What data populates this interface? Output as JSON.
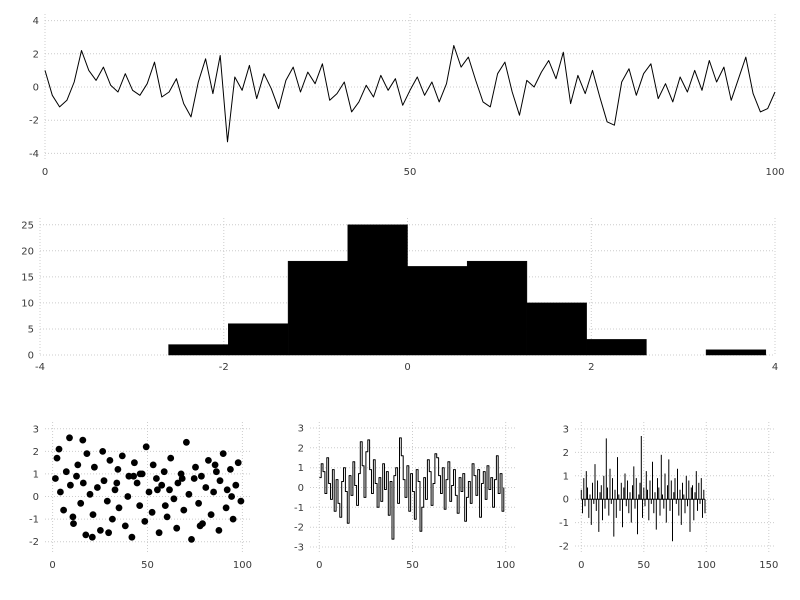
{
  "page": {
    "background": "#ffffff",
    "series_color": "#000000",
    "grid_color": "#cccccc",
    "tick_color": "#3a3a3a"
  },
  "chart_data": [
    {
      "id": "line",
      "type": "line",
      "title": "",
      "xlabel": "",
      "ylabel": "",
      "xlim": [
        0,
        100
      ],
      "ylim": [
        -4.4,
        4.4
      ],
      "xticks": [
        0,
        50,
        100
      ],
      "yticks": [
        -4,
        -2,
        0,
        2,
        4
      ],
      "grid": true,
      "color": "#000000",
      "y": [
        1.0,
        -0.5,
        -1.2,
        -0.8,
        0.3,
        2.2,
        1.0,
        0.4,
        1.2,
        0.1,
        -0.3,
        0.8,
        -0.2,
        -0.5,
        0.2,
        1.5,
        -0.6,
        -0.3,
        0.5,
        -1.0,
        -1.8,
        0.3,
        1.7,
        -0.4,
        1.9,
        -3.3,
        0.6,
        -0.2,
        1.3,
        -0.7,
        0.8,
        -0.1,
        -1.3,
        0.4,
        1.2,
        -0.3,
        0.9,
        0.2,
        1.4,
        -0.8,
        -0.4,
        0.3,
        -1.5,
        -0.9,
        0.1,
        -0.6,
        0.7,
        -0.2,
        0.5,
        -1.1,
        -0.2,
        0.6,
        -0.5,
        0.3,
        -0.9,
        0.2,
        2.5,
        1.2,
        1.8,
        0.4,
        -0.9,
        -1.2,
        0.8,
        1.5,
        -0.3,
        -1.7,
        0.4,
        0.0,
        0.9,
        1.6,
        0.5,
        2.1,
        -1.0,
        0.7,
        -0.4,
        1.0,
        -0.6,
        -2.1,
        -2.3,
        0.3,
        1.1,
        -0.5,
        0.8,
        1.4,
        -0.7,
        0.2,
        -0.9,
        0.6,
        -0.3,
        1.0,
        -0.2,
        1.6,
        0.3,
        1.2,
        -0.8,
        0.5,
        1.8,
        -0.4,
        -1.5,
        -1.3,
        -0.3
      ]
    },
    {
      "id": "hist",
      "type": "histogram",
      "title": "",
      "xlabel": "",
      "ylabel": "",
      "xlim": [
        -4,
        4
      ],
      "ylim": [
        0,
        26.3
      ],
      "xticks": [
        -4,
        -2,
        0,
        2,
        4
      ],
      "yticks": [
        0,
        5,
        10,
        15,
        20,
        25
      ],
      "grid": true,
      "color": "#000000",
      "bin_edges": [
        -2.6,
        -1.95,
        -1.3,
        -0.65,
        0.0,
        0.65,
        1.3,
        1.95,
        2.6,
        3.25,
        3.9
      ],
      "counts": [
        2,
        6,
        18,
        25,
        17,
        18,
        10,
        3,
        0,
        1
      ]
    },
    {
      "id": "scatter",
      "type": "scatter",
      "title": "",
      "xlabel": "",
      "ylabel": "",
      "xlim": [
        -4,
        104
      ],
      "ylim": [
        -2.5,
        3.3
      ],
      "xticks": [
        0,
        50,
        100
      ],
      "yticks": [
        -2,
        -1,
        0,
        1,
        2,
        3
      ],
      "grid": true,
      "color": "#000000",
      "x": [
        1.5,
        2.3,
        4.1,
        5.8,
        7.2,
        8.9,
        9.4,
        11.0,
        12.6,
        13.3,
        14.8,
        16.2,
        17.5,
        18.1,
        19.7,
        21.3,
        22.0,
        23.6,
        25.2,
        26.4,
        27.1,
        28.8,
        30.2,
        31.5,
        32.9,
        34.4,
        35.0,
        36.7,
        38.3,
        39.6,
        40.2,
        41.8,
        43.1,
        44.5,
        45.9,
        47.2,
        48.6,
        49.3,
        50.8,
        52.4,
        53.0,
        54.7,
        56.1,
        57.5,
        58.8,
        60.3,
        61.6,
        62.2,
        63.9,
        65.4,
        66.0,
        67.7,
        69.1,
        70.5,
        71.8,
        73.2,
        74.6,
        75.3,
        76.9,
        78.4,
        79.0,
        80.7,
        82.1,
        83.5,
        84.8,
        86.3,
        87.6,
        88.2,
        89.9,
        91.4,
        92.0,
        93.7,
        95.1,
        96.5,
        97.8,
        99.2,
        3.4,
        10.7,
        20.9,
        33.8,
        46.1,
        59.4,
        68.3,
        77.7,
        85.6,
        94.3,
        15.9,
        29.5,
        42.7,
        55.2
      ],
      "y": [
        0.8,
        1.7,
        0.2,
        -0.6,
        1.1,
        2.6,
        0.5,
        -1.2,
        0.9,
        1.4,
        -0.3,
        0.6,
        -1.7,
        1.9,
        0.1,
        -0.8,
        1.3,
        0.4,
        -1.5,
        2.0,
        0.7,
        -0.2,
        1.6,
        -1.0,
        0.3,
        1.2,
        -0.5,
        1.8,
        -1.3,
        0.0,
        0.9,
        -1.8,
        1.5,
        0.6,
        -0.4,
        1.0,
        -1.1,
        2.2,
        0.2,
        -0.7,
        1.4,
        0.8,
        -1.6,
        0.5,
        1.1,
        -0.9,
        0.3,
        1.7,
        -0.1,
        -1.4,
        0.6,
        1.0,
        -0.6,
        2.4,
        0.1,
        -1.9,
        0.8,
        1.3,
        -0.3,
        0.9,
        -1.2,
        0.4,
        1.6,
        -0.8,
        0.2,
        1.1,
        -1.5,
        0.7,
        1.9,
        -0.5,
        0.3,
        1.2,
        -1.0,
        0.5,
        1.5,
        -0.2,
        2.1,
        -0.9,
        -1.8,
        0.6,
        1.0,
        -0.4,
        0.8,
        -1.3,
        1.4,
        0.0,
        2.5,
        -1.6,
        0.9,
        0.3
      ]
    },
    {
      "id": "step",
      "type": "step",
      "title": "",
      "xlabel": "",
      "ylabel": "",
      "xlim": [
        -5,
        105
      ],
      "ylim": [
        -3.3,
        3.3
      ],
      "xticks": [
        0,
        50,
        100
      ],
      "yticks": [
        -3,
        -2,
        -1,
        0,
        1,
        2,
        3
      ],
      "grid": true,
      "color": "#000000",
      "y": [
        0.5,
        1.2,
        0.8,
        -0.3,
        1.5,
        0.2,
        -0.6,
        0.9,
        -1.2,
        0.4,
        -0.8,
        -1.5,
        0.3,
        1.0,
        -0.2,
        -1.8,
        0.6,
        -0.4,
        1.3,
        0.1,
        -0.9,
        0.7,
        2.3,
        1.1,
        -0.5,
        1.8,
        2.4,
        0.9,
        -0.3,
        1.4,
        0.2,
        -1.0,
        0.5,
        -0.7,
        1.2,
        -0.1,
        0.8,
        -1.4,
        0.3,
        -2.6,
        0.6,
        1.0,
        -0.8,
        2.5,
        1.6,
        0.4,
        -0.5,
        1.1,
        -1.2,
        0.7,
        -0.2,
        -1.6,
        0.9,
        0.3,
        -2.2,
        -1.0,
        0.5,
        -0.6,
        1.4,
        0.8,
        -0.9,
        0.2,
        1.7,
        1.5,
        0.6,
        -0.3,
        1.0,
        -1.1,
        0.4,
        1.3,
        -0.7,
        0.1,
        0.9,
        -0.4,
        -1.3,
        0.5,
        -0.2,
        0.7,
        -1.7,
        -0.5,
        0.3,
        -0.8,
        1.2,
        0.6,
        -0.4,
        0.9,
        -1.5,
        0.2,
        0.8,
        -0.6,
        1.1,
        -0.1,
        0.5,
        -1.0,
        0.4,
        1.6,
        -0.3,
        0.7,
        -1.2,
        0.0
      ]
    },
    {
      "id": "stem",
      "type": "stem",
      "title": "",
      "xlabel": "",
      "ylabel": "",
      "xlim": [
        -5,
        155
      ],
      "ylim": [
        -2.3,
        3.3
      ],
      "xticks": [
        0,
        50,
        100,
        150
      ],
      "yticks": [
        -2,
        -1,
        0,
        1,
        2,
        3
      ],
      "grid": true,
      "color": "#000000",
      "y": [
        0.4,
        -0.6,
        0.9,
        -0.3,
        1.2,
        0.5,
        -0.8,
        0.2,
        -1.1,
        0.7,
        -0.2,
        1.5,
        -0.5,
        0.8,
        -1.4,
        0.3,
        0.6,
        -0.9,
        1.0,
        -0.4,
        2.6,
        0.5,
        -0.7,
        1.3,
        -0.2,
        0.9,
        -1.6,
        0.4,
        -0.8,
        1.8,
        0.2,
        -0.5,
        0.7,
        -1.2,
        0.5,
        1.1,
        -0.3,
        0.8,
        -0.6,
        0.3,
        -1.0,
        0.6,
        1.4,
        -0.4,
        0.9,
        -1.5,
        0.2,
        0.7,
        2.7,
        -0.8,
        0.5,
        -0.3,
        1.2,
        0.4,
        -0.9,
        0.8,
        -0.2,
        1.6,
        -0.6,
        0.3,
        -1.3,
        0.9,
        0.5,
        -0.7,
        1.9,
        0.2,
        -0.4,
        1.1,
        -1.0,
        0.6,
        1.7,
        -0.5,
        0.8,
        -1.8,
        0.3,
        0.9,
        -0.2,
        1.3,
        -0.7,
        0.4,
        -1.1,
        0.7,
        0.2,
        -0.6,
        1.0,
        -0.3,
        0.8,
        -1.4,
        0.5,
        0.6,
        -0.9,
        0.3,
        1.2,
        -0.5,
        0.7,
        -0.2,
        0.9,
        -0.8,
        0.4,
        -0.6
      ]
    }
  ]
}
